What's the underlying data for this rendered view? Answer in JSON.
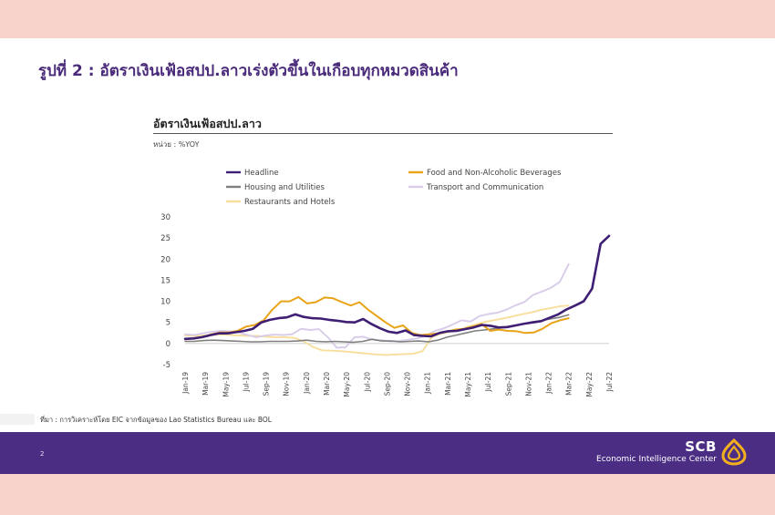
{
  "slide": {
    "title": "รูปที่ 2 : อัตราเงินเฟ้อสปป.ลาวเร่งตัวขึ้นในเกือบทุกหมวดสินค้า",
    "source": "ที่มา : การวิเคราะห์โดย EIC จากข้อมูลของ Lao Statistics Bureau และ BOL",
    "page_number": "2"
  },
  "brand": {
    "name": "SCB",
    "subtitle": "Economic Intelligence Center"
  },
  "colors": {
    "accent_purple": "#4b2d84",
    "page_margin": "#f7d3cb"
  },
  "chart_data": {
    "type": "line",
    "title": "อัตราเงินเฟ้อสปป.ลาว",
    "unit_label": "หน่วย : %YOY",
    "xlabel": "",
    "ylabel": "",
    "ylim": [
      -5,
      30
    ],
    "yticks": [
      -5,
      0,
      5,
      10,
      15,
      20,
      25,
      30
    ],
    "grid": false,
    "legend_position": "top",
    "x_tick_labels": [
      "Jan-19",
      "Mar-19",
      "May-19",
      "Jul-19",
      "Sep-19",
      "Nov-19",
      "Jan-20",
      "Mar-20",
      "May-20",
      "Jul-20",
      "Sep-20",
      "Nov-20",
      "Jan-21",
      "Mar-21",
      "May-21",
      "Jul-21",
      "Sep-21",
      "Nov-21",
      "Jan-22",
      "Mar-22",
      "May-22",
      "Jul-22"
    ],
    "series": [
      {
        "name": "Headline",
        "color": "#3f1f74",
        "width": 2.6,
        "values": [
          1.1,
          1.2,
          1.5,
          2.0,
          2.4,
          2.4,
          2.7,
          3.0,
          3.5,
          5.0,
          5.6,
          6.0,
          6.2,
          6.9,
          6.3,
          6.0,
          5.9,
          5.6,
          5.4,
          5.1,
          5.0,
          5.8,
          4.6,
          3.6,
          2.8,
          2.5,
          3.1,
          2.0,
          1.8,
          1.7,
          2.5,
          2.9,
          3.0,
          3.4,
          3.8,
          4.4,
          4.2,
          3.8,
          3.9,
          4.3,
          4.7,
          5.0,
          5.3,
          6.1,
          6.9,
          8.1,
          9.0,
          10.0,
          13.0,
          23.6,
          25.5
        ]
      },
      {
        "name": "Food and Non-Alcoholic Beverages",
        "color": "#e8a317",
        "width": 2.0,
        "values": [
          1.0,
          1.2,
          1.5,
          2.2,
          2.6,
          2.6,
          3.0,
          4.0,
          4.4,
          5.5,
          8.0,
          10.0,
          10.0,
          11.0,
          9.5,
          9.8,
          10.9,
          10.7,
          9.8,
          9.0,
          9.8,
          8.0,
          6.5,
          5.0,
          3.7,
          4.3,
          2.5,
          2.0,
          2.2,
          2.4,
          2.8,
          3.3,
          3.5,
          4.0,
          4.6,
          3.0,
          3.3,
          3.0,
          2.9,
          2.5,
          2.6,
          3.5,
          4.8,
          5.5,
          6.0
        ]
      },
      {
        "name": "Housing and Utilities",
        "color": "#7f7f7f",
        "width": 1.6,
        "values": [
          0.5,
          0.5,
          0.7,
          0.8,
          0.7,
          0.6,
          0.5,
          0.4,
          0.4,
          0.5,
          0.5,
          0.5,
          0.6,
          0.8,
          0.5,
          0.4,
          0.5,
          0.4,
          0.3,
          0.5,
          1.0,
          0.6,
          0.6,
          0.4,
          0.5,
          0.6,
          0.4,
          0.8,
          1.5,
          2.0,
          2.5,
          3.0,
          3.2,
          3.5,
          3.8,
          4.2,
          4.6,
          5.1,
          5.4,
          5.8,
          6.2,
          6.8
        ]
      },
      {
        "name": "Transport and Communication",
        "color": "#d8cce9",
        "width": 1.9,
        "values": [
          2.2,
          2.0,
          2.4,
          2.8,
          3.0,
          2.9,
          2.6,
          2.0,
          1.5,
          1.9,
          2.1,
          2.0,
          2.2,
          3.5,
          3.2,
          3.4,
          1.5,
          -1.0,
          -0.9,
          1.5,
          1.6,
          0.9,
          0.8,
          0.5,
          0.6,
          0.9,
          1.2,
          1.8,
          3.0,
          3.6,
          4.5,
          5.5,
          5.2,
          6.5,
          7.0,
          7.3,
          8.0,
          9.0,
          9.8,
          11.5,
          12.3,
          13.2,
          14.6,
          18.8
        ]
      },
      {
        "name": "Restaurants and Hotels",
        "color": "#f8de9c",
        "width": 1.9,
        "values": [
          1.9,
          1.8,
          1.9,
          2.0,
          2.1,
          2.0,
          1.9,
          1.8,
          1.8,
          1.6,
          1.5,
          1.5,
          1.3,
          0.5,
          -0.8,
          -1.6,
          -1.7,
          -1.8,
          -2.0,
          -2.2,
          -2.4,
          -2.6,
          -2.7,
          -2.6,
          -2.5,
          -2.4,
          -1.8,
          1.5,
          2.3,
          2.8,
          3.2,
          4.0,
          4.6,
          5.2,
          5.6,
          6.0,
          6.5,
          7.0,
          7.4,
          8.0,
          8.4,
          8.8,
          9.0
        ]
      }
    ]
  }
}
